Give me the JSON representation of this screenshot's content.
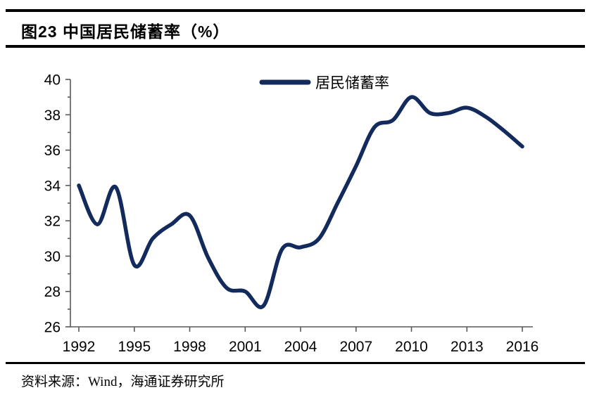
{
  "header": {
    "title": "图23 中国居民储蓄率（%）"
  },
  "footer": {
    "source": "资料来源：Wind，海通证券研究所"
  },
  "chart_data": {
    "type": "line",
    "title": "图23 中国居民储蓄率（%）",
    "xlabel": "",
    "ylabel": "",
    "legend_position": "top-center",
    "grid": false,
    "ylim": [
      26,
      40
    ],
    "ytick_step": 2,
    "xticks": [
      1992,
      1995,
      1998,
      2001,
      2004,
      2007,
      2010,
      2013,
      2016
    ],
    "x": [
      1992,
      1993,
      1994,
      1995,
      1996,
      1997,
      1998,
      1999,
      2000,
      2001,
      2002,
      2003,
      2004,
      2005,
      2006,
      2007,
      2008,
      2009,
      2010,
      2011,
      2012,
      2013,
      2014,
      2015,
      2016
    ],
    "series": [
      {
        "name": "居民储蓄率",
        "values": [
          34.0,
          31.8,
          33.9,
          29.5,
          31.0,
          31.8,
          32.3,
          29.9,
          28.2,
          28.0,
          27.2,
          30.4,
          30.5,
          31.0,
          33.0,
          35.1,
          37.3,
          37.7,
          39.0,
          38.1,
          38.1,
          38.4,
          37.9,
          37.1,
          36.2
        ]
      }
    ],
    "colors": {
      "line": "#132A5C",
      "axis": "#595959",
      "text": "#000000"
    }
  }
}
